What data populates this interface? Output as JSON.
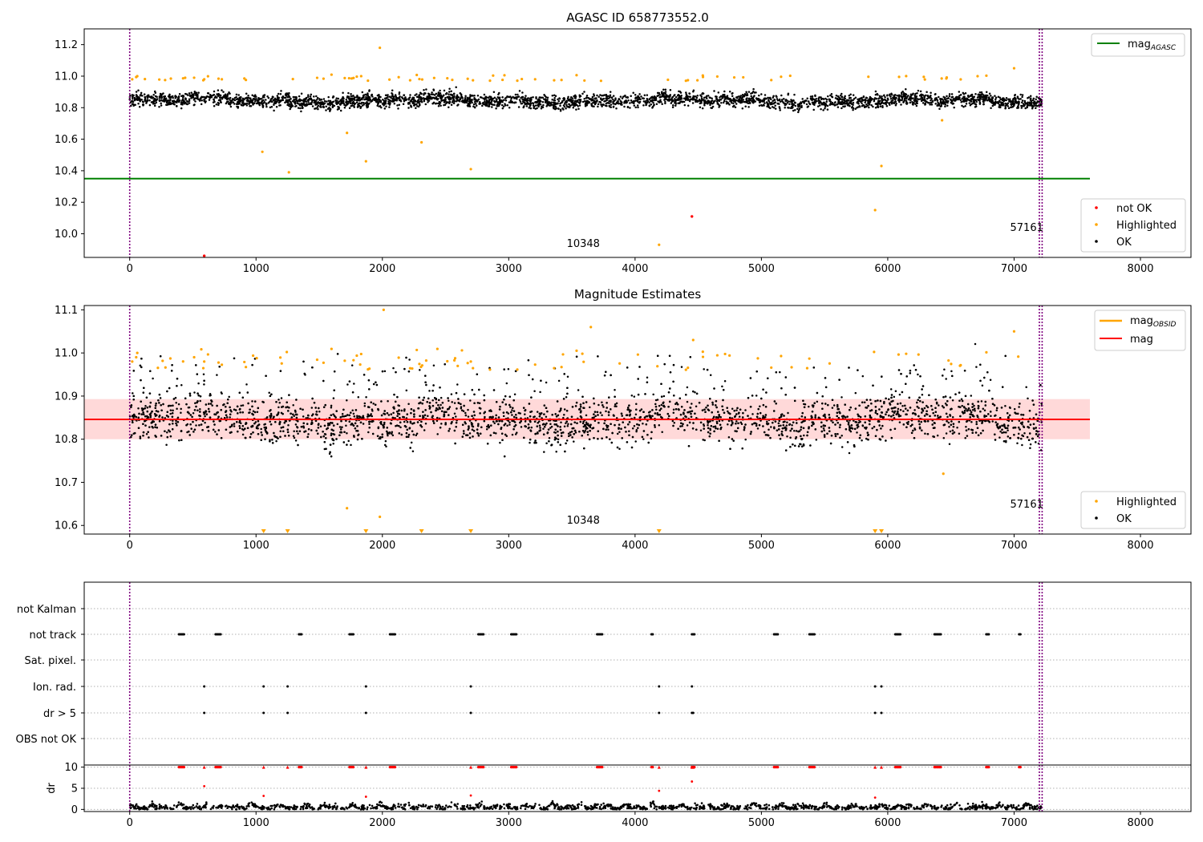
{
  "figure": {
    "title": "AGASC ID 658773552.0",
    "mid_title": "Magnitude Estimates",
    "x_ticks": [
      0,
      1000,
      2000,
      3000,
      4000,
      5000,
      6000,
      7000,
      8000
    ],
    "xlim": [
      -360,
      8400
    ]
  },
  "obsid_markers": {
    "lines_x": [
      0,
      7200,
      7222
    ],
    "color": "#800080",
    "labels": [
      {
        "text": "10348",
        "x": 3590,
        "offset": 13
      },
      {
        "text": "57161",
        "x": 7100,
        "offset": 33
      }
    ]
  },
  "colors": {
    "ok": "#000000",
    "highlighted": "#ffa500",
    "not_ok": "#ff0000",
    "agasc_line": "#008000",
    "mag_line": "#ff0000",
    "mag_obsid": "#ffa500",
    "band": "#ffc0c0"
  },
  "chart_data": [
    {
      "type": "scatter",
      "title": "AGASC ID 658773552.0",
      "xlabel": "",
      "ylabel": "",
      "ylim": [
        9.85,
        11.3
      ],
      "y_ticks": [
        "10.0",
        "10.2",
        "10.4",
        "10.6",
        "10.8",
        "11.0",
        "11.2"
      ],
      "agasc_mag": 10.35,
      "agasc_line_x": [
        -360,
        7600
      ],
      "series": [
        {
          "name": "not OK",
          "x": [
            590,
            4450
          ],
          "values": [
            9.86,
            10.11
          ]
        },
        {
          "name": "Highlighted",
          "x": [
            20,
            60,
            510,
            590,
            1050,
            1260,
            1720,
            1870,
            1980,
            2310,
            2700,
            4190,
            5900,
            5950,
            6430,
            7000
          ],
          "values": [
            10.98,
            11.0,
            10.99,
            10.98,
            10.52,
            10.39,
            10.64,
            10.46,
            11.18,
            10.58,
            10.41,
            9.93,
            10.15,
            10.43,
            10.72,
            11.05
          ]
        },
        {
          "name": "OK",
          "description": "dense band of several thousand points between ~10.75 and ~10.97",
          "x_range": [
            0,
            7220
          ],
          "y_center": 10.845
        }
      ],
      "legend": [
        {
          "label": "mag_AGASC",
          "position": "top-right"
        },
        {
          "labels": [
            "not OK",
            "Highlighted",
            "OK"
          ],
          "position": "lower-right"
        }
      ]
    },
    {
      "type": "scatter",
      "title": "Magnitude Estimates",
      "xlabel": "",
      "ylabel": "",
      "ylim": [
        10.58,
        11.11
      ],
      "y_ticks": [
        "10.6",
        "10.7",
        "10.8",
        "10.9",
        "11.0",
        "11.1"
      ],
      "mag": 10.846,
      "band": [
        10.8,
        10.893
      ],
      "series": [
        {
          "name": "Highlighted",
          "x": [
            20,
            60,
            510,
            590,
            1720,
            1980,
            2010,
            2700,
            3650,
            4460,
            6440,
            7000
          ],
          "values": [
            10.98,
            11.0,
            10.99,
            10.98,
            10.64,
            10.62,
            11.1,
            10.98,
            11.06,
            11.03,
            10.72,
            11.05
          ]
        },
        {
          "name": "Highlighted (below range)",
          "x": [
            1060,
            1250,
            1870,
            2310,
            2700,
            4190,
            5900,
            5950
          ]
        },
        {
          "name": "OK",
          "description": "dense band between ~10.73 and ~10.97",
          "x_range": [
            0,
            7220
          ],
          "y_center": 10.846
        }
      ],
      "legend": [
        {
          "labels": [
            "mag_OBSID",
            "mag"
          ],
          "position": "top-right"
        },
        {
          "labels": [
            "Highlighted",
            "OK"
          ],
          "position": "lower-right"
        }
      ]
    },
    {
      "type": "scatter",
      "title": "",
      "categories": [
        "not Kalman",
        "not track",
        "Sat. pixel.",
        "Ion. rad.",
        "dr > 5",
        "OBS not OK"
      ],
      "flags": {
        "not track": [
          390,
          400,
          410,
          420,
          430,
          680,
          690,
          700,
          710,
          720,
          1340,
          1350,
          1360,
          1740,
          1750,
          1760,
          1770,
          2060,
          2070,
          2080,
          2090,
          2100,
          2760,
          2770,
          2780,
          2790,
          2800,
          3020,
          3030,
          3040,
          3050,
          3060,
          3700,
          3710,
          3720,
          3730,
          3740,
          4130,
          4140,
          4450,
          4460,
          4470,
          5100,
          5110,
          5120,
          5130,
          5380,
          5390,
          5400,
          5410,
          5420,
          6060,
          6070,
          6080,
          6090,
          6100,
          6370,
          6380,
          6390,
          6400,
          6410,
          6420,
          6780,
          6790,
          6800,
          7040,
          7050
        ],
        "Ion. rad.": [
          590,
          1060,
          1250,
          1870,
          2700,
          4190,
          4450,
          5900,
          5950
        ],
        "dr > 5": [
          590,
          1060,
          1250,
          1870,
          2700,
          4190,
          4450,
          4460,
          5900,
          5950
        ]
      }
    },
    {
      "type": "scatter",
      "title": "",
      "ylabel": "dr",
      "ylim": [
        -0.5,
        10.5
      ],
      "y_ticks": [
        "0",
        "5",
        "10"
      ],
      "series": [
        {
          "name": "dr",
          "x_range": [
            0,
            7220
          ],
          "range": [
            0,
            2.5
          ]
        },
        {
          "name": "dr outliers",
          "x": [
            590,
            1060,
            1870,
            2700,
            4190,
            4450,
            5900
          ],
          "values": [
            5.5,
            3.2,
            3.0,
            3.3,
            4.4,
            6.6,
            2.8
          ]
        }
      ]
    }
  ]
}
